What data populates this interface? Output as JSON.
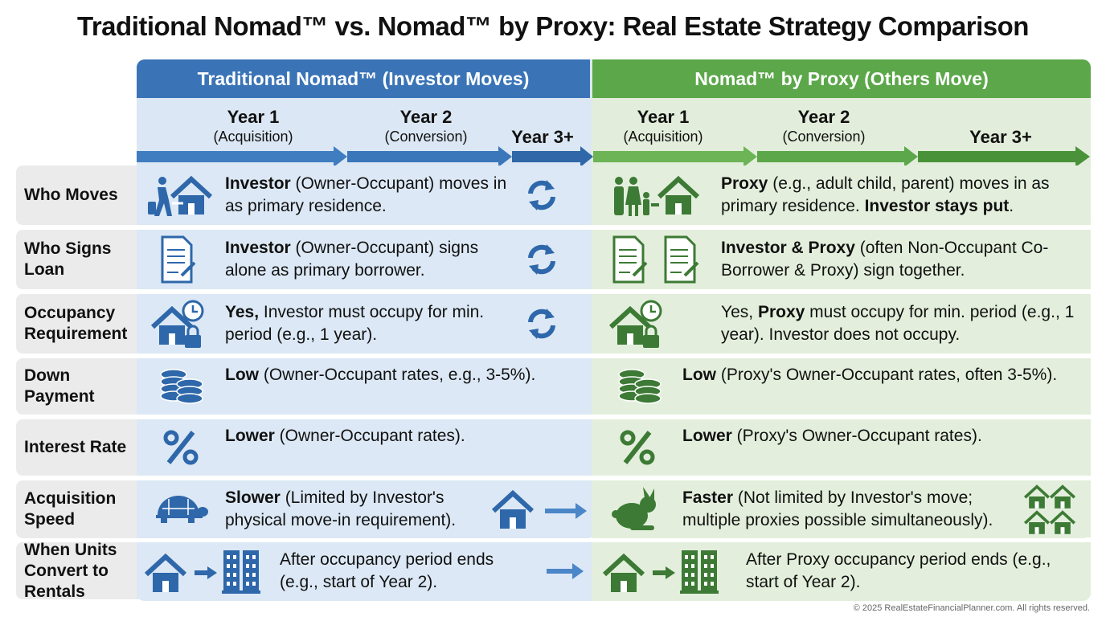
{
  "title": "Traditional Nomad™ vs. Nomad™ by Proxy: Real Estate Strategy Comparison",
  "colors": {
    "blue_header": "#3a74b7",
    "blue_icon": "#2e67aa",
    "green_header": "#5ba749",
    "green_icon": "#3d7a35"
  },
  "left": {
    "header": "Traditional Nomad™ (Investor Moves)",
    "years": [
      {
        "label": "Year 1",
        "sub": "(Acquisition)"
      },
      {
        "label": "Year 2",
        "sub": "(Conversion)"
      },
      {
        "label": "Year 3+",
        "sub": ""
      }
    ]
  },
  "right": {
    "header": "Nomad™ by Proxy (Others Move)",
    "years": [
      {
        "label": "Year 1",
        "sub": "(Acquisition)"
      },
      {
        "label": "Year 2",
        "sub": "(Conversion)"
      },
      {
        "label": "Year 3+",
        "sub": ""
      }
    ]
  },
  "rows": [
    {
      "label": "Who Moves",
      "left": {
        "icon": "person-moving-house-icon",
        "bold": "Investor",
        "text": " (Owner-Occupant) moves in as primary residence.",
        "extra_icon": "refresh-icon"
      },
      "right": {
        "icon": "family-house-icon",
        "bold": "Proxy",
        "text": " (e.g., adult child, parent) moves in as primary residence. ",
        "bold2": "Investor stays put",
        "text2": "."
      }
    },
    {
      "label": "Who Signs Loan",
      "left": {
        "icon": "signed-document-icon",
        "bold": "Investor",
        "text": " (Owner-Occupant) signs alone as primary borrower.",
        "extra_icon": "refresh-icon"
      },
      "right": {
        "icon": "two-signed-documents-icon",
        "bold": "Investor & Proxy",
        "text": " (often Non-Occupant Co-Borrower & Proxy) sign together."
      }
    },
    {
      "label": "Occupancy Requirement",
      "left": {
        "icon": "house-clock-lock-icon",
        "bold": "Yes,",
        "text": " Investor must occupy for min. period (e.g., 1 year).",
        "extra_icon": "refresh-icon"
      },
      "right": {
        "icon": "house-clock-lock-icon",
        "pre": "Yes, ",
        "bold": "Proxy",
        "text": " must occupy for min. period (e.g., 1 year). Investor does not occupy."
      }
    },
    {
      "label": "Down Payment",
      "left": {
        "icon": "coins-icon",
        "bold": "Low",
        "text": " (Owner-Occupant rates, e.g., 3-5%)."
      },
      "right": {
        "icon": "coins-icon",
        "bold": "Low",
        "text": " (Proxy's Owner-Occupant rates, often 3-5%)."
      }
    },
    {
      "label": "Interest Rate",
      "left": {
        "icon": "percent-icon",
        "bold": "Lower",
        "text": " (Owner-Occupant rates)."
      },
      "right": {
        "icon": "percent-icon",
        "bold": "Lower",
        "text": " (Proxy's Owner-Occupant rates)."
      }
    },
    {
      "label": "Acquisition Speed",
      "left": {
        "icon": "turtle-icon",
        "bold": "Slower",
        "text": " (Limited by Investor's physical move-in requirement).",
        "extra_icon": "house-arrow-icon"
      },
      "right": {
        "icon": "rabbit-icon",
        "bold": "Faster",
        "text": " (Not limited by Investor's move; multiple proxies possible simultaneously).",
        "extra_icon": "multiple-houses-icon"
      }
    },
    {
      "label": "When Units Convert to Rentals",
      "left": {
        "icon": "house-to-apartment-icon",
        "bold": "",
        "text": "After occupancy period ends (e.g., start of Year 2).",
        "extra_icon": "arrow-right-icon"
      },
      "right": {
        "icon": "house-to-apartment-icon",
        "bold": "",
        "text": "After Proxy occupancy period ends (e.g., start of Year 2)."
      }
    }
  ],
  "footer": "© 2025 RealEstateFinancialPlanner.com. All rights reserved."
}
